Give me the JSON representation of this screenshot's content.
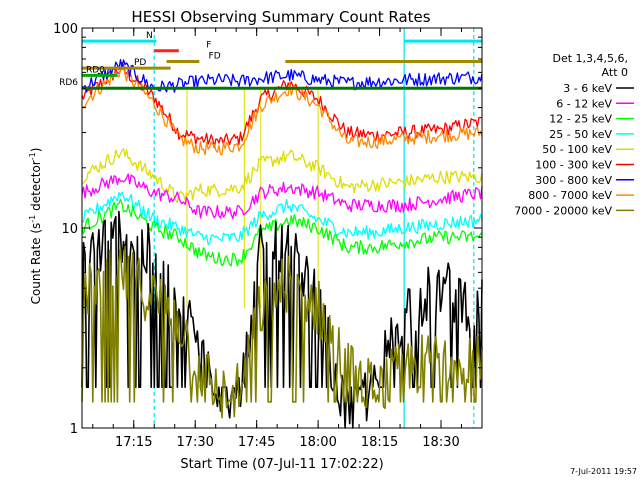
{
  "chart_data": {
    "type": "line",
    "title": "HESSI Observing Summary Count Rates",
    "xlabel": "Start Time (07-Jul-11 17:02:22)",
    "ylabel_main": "Count Rate (s",
    "ylabel_sup1": "-1",
    "ylabel_mid": " detector",
    "ylabel_sup2": "-1",
    "ylabel_end": ")",
    "yscale": "log",
    "ylim": [
      1,
      100
    ],
    "xlim_minutes": [
      1022.37,
      1120
    ],
    "x_ticks": [
      {
        "label": "17:15",
        "minutes": 1035
      },
      {
        "label": "17:30",
        "minutes": 1050
      },
      {
        "label": "17:45",
        "minutes": 1065
      },
      {
        "label": "18:00",
        "minutes": 1080
      },
      {
        "label": "18:15",
        "minutes": 1095
      },
      {
        "label": "18:30",
        "minutes": 1110
      }
    ],
    "y_ticks": [
      {
        "label": "1",
        "value": 1
      },
      {
        "label": "10",
        "value": 10
      },
      {
        "label": "100",
        "value": 100
      }
    ],
    "legend": {
      "placement": "right",
      "header": [
        "Det 1,3,4,5,6,",
        "Att 0"
      ]
    },
    "timestamp": "7-Jul-2011 19:57",
    "flag_bars": [
      {
        "label": "N",
        "color": "#00e5ee",
        "value": 86,
        "segments": [
          [
            1022.37,
            1040.5
          ],
          [
            1101,
            1120
          ]
        ]
      },
      {
        "label": "F",
        "color": "#ff2020",
        "value": 77,
        "segments": [
          [
            1040,
            1046
          ]
        ]
      },
      {
        "label": "FD",
        "color": "#a08a00",
        "value": 68,
        "segments": [
          [
            1043,
            1051
          ],
          [
            1072,
            1120
          ]
        ]
      },
      {
        "label": "PD",
        "color": "#a08a00",
        "value": 63,
        "segments": [
          [
            1022.37,
            1044
          ]
        ]
      },
      {
        "label": "RD0",
        "color": "#00aa00",
        "value": 58,
        "segments": [
          [
            1022.37,
            1031
          ]
        ]
      },
      {
        "label": "RD6",
        "color": "#007700",
        "value": 50,
        "segments": [
          [
            1022.37,
            1120
          ]
        ]
      }
    ],
    "bands": [
      {
        "name": "3 - 6 keV",
        "color": "#000000",
        "values": [
          7,
          9.5,
          7,
          4,
          2.8,
          1.6,
          1.4,
          7.5,
          7.6,
          4.1,
          1.1,
          1.7,
          4,
          5,
          4
        ],
        "floor": 1.6
      },
      {
        "name": "6 - 12 keV",
        "color": "#ff00ff",
        "values": [
          15,
          18,
          15,
          14,
          12,
          12,
          12,
          15,
          16,
          15,
          13,
          13,
          13,
          14,
          15
        ],
        "floor": 0
      },
      {
        "name": "12 - 25 keV",
        "color": "#00ff00",
        "values": [
          10,
          13,
          10,
          9,
          7.5,
          7,
          7,
          9.5,
          11,
          10,
          8,
          8,
          8.5,
          9,
          9
        ],
        "floor": 0
      },
      {
        "name": "25 - 50 keV",
        "color": "#00ffff",
        "values": [
          11,
          15,
          11,
          10,
          9,
          8.8,
          9,
          11.5,
          13,
          11,
          9.5,
          9.5,
          10,
          10.5,
          11
        ],
        "floor": 0
      },
      {
        "name": "50 - 100 keV",
        "color": "#dddd00",
        "values": [
          18,
          24,
          18,
          14,
          15.5,
          15.5,
          16,
          21,
          23,
          20,
          16,
          16.5,
          17,
          18,
          18
        ],
        "floor": 0
      },
      {
        "name": "100 - 300 keV",
        "color": "#ff0000",
        "values": [
          45,
          63,
          45,
          30,
          28,
          27,
          28,
          44,
          53,
          44,
          30,
          29,
          30,
          31,
          34
        ],
        "floor": 0
      },
      {
        "name": "300 - 800 keV",
        "color": "#0000ff",
        "values": [
          50,
          66,
          50,
          52,
          54,
          55,
          54,
          56,
          58,
          55,
          53,
          54,
          55,
          56,
          57
        ],
        "floor": 0
      },
      {
        "name": "800 - 7000 keV",
        "color": "#ff8800",
        "values": [
          42,
          62,
          42,
          28,
          25,
          25,
          26,
          41,
          50,
          41,
          27,
          27,
          28,
          29,
          30
        ],
        "floor": 0
      },
      {
        "name": "7000 - 20000 keV",
        "color": "#808000",
        "values": [
          4.5,
          6,
          4.5,
          3.5,
          2,
          1.5,
          1.5,
          4,
          5.5,
          4,
          2,
          1.5,
          2,
          2.2,
          2.5
        ],
        "floor": 1.35
      }
    ],
    "band_x_minutes": [
      1022.37,
      1032,
      1040,
      1046,
      1051,
      1056,
      1061,
      1066,
      1073,
      1080,
      1087,
      1094,
      1101,
      1110,
      1120
    ],
    "events_minutes": {
      "cyan_solid": [
        1101
      ],
      "cyan_dashed": [
        1040,
        1118
      ],
      "yellow": [
        1048,
        1062,
        1066,
        1080
      ]
    }
  }
}
